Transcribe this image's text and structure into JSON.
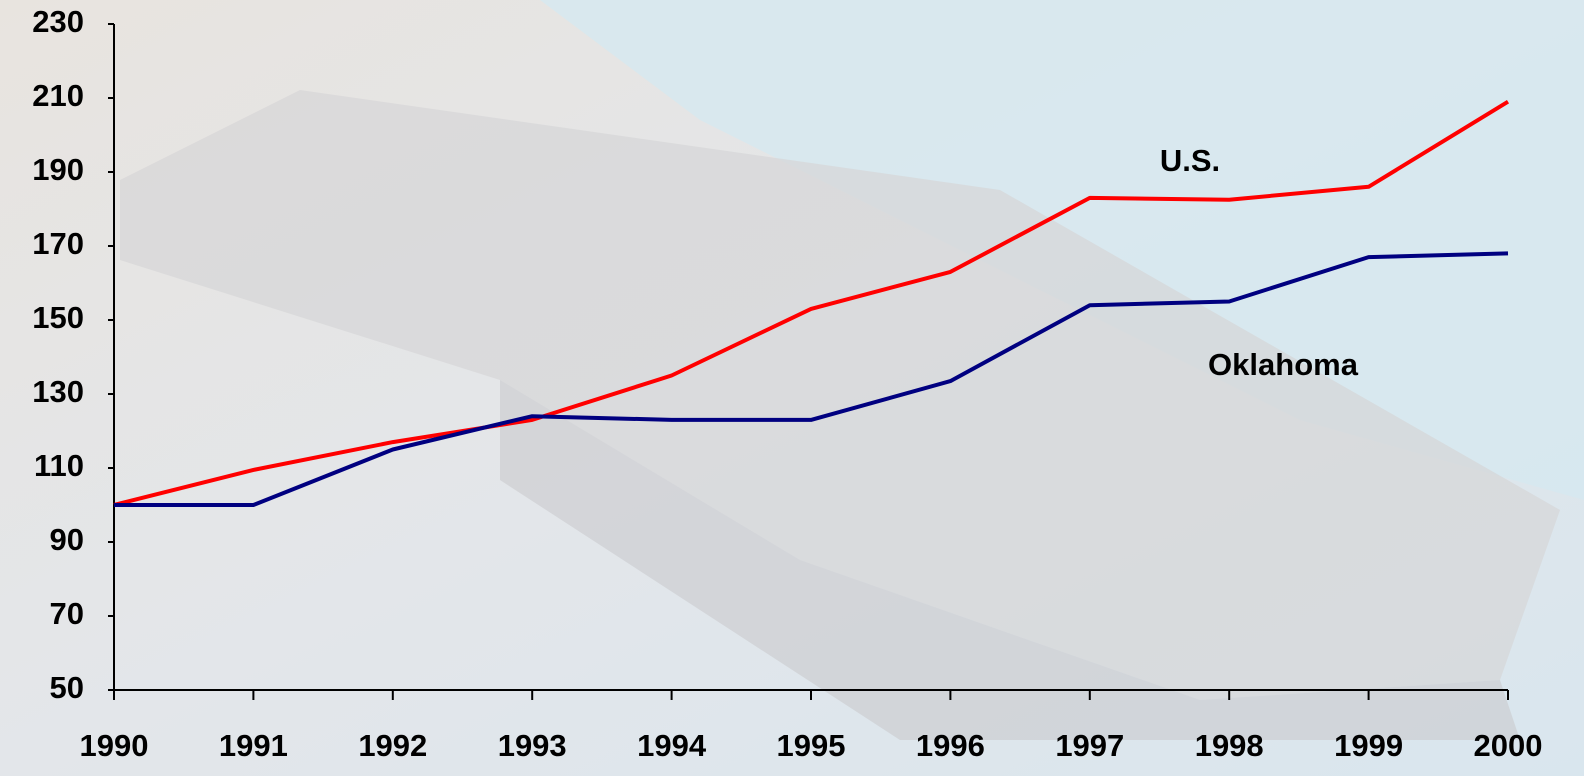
{
  "chart_data": {
    "type": "line",
    "x": [
      1990,
      1991,
      1992,
      1993,
      1994,
      1995,
      1996,
      1997,
      1998,
      1999,
      2000
    ],
    "xlim": [
      1990,
      2000
    ],
    "xticks": [
      1990,
      1991,
      1992,
      1993,
      1994,
      1995,
      1996,
      1997,
      1998,
      1999,
      2000
    ],
    "ylim": [
      50,
      230
    ],
    "yticks": [
      50,
      70,
      90,
      110,
      130,
      150,
      170,
      190,
      210,
      230
    ],
    "series": [
      {
        "name": "U.S.",
        "color": "#ff0000",
        "values": [
          100,
          109.5,
          117,
          123,
          135,
          153,
          163,
          183,
          182.5,
          186,
          209
        ]
      },
      {
        "name": "Oklahoma",
        "color": "#000080",
        "values": [
          100,
          100,
          115,
          124,
          123,
          123,
          133.5,
          154,
          155,
          167,
          168
        ]
      }
    ]
  }
}
